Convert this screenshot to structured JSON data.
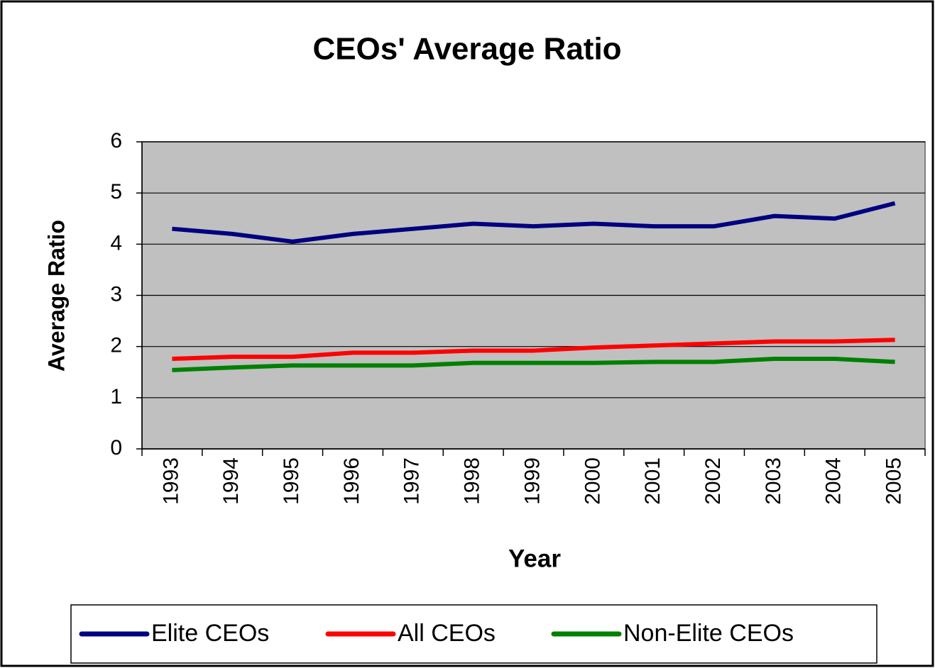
{
  "chart_data": {
    "type": "line",
    "title": "CEOs' Average Ratio",
    "x_label": "Year",
    "y_label": "Average Ratio",
    "categories": [
      "1993",
      "1994",
      "1995",
      "1996",
      "1997",
      "1998",
      "1999",
      "2000",
      "2001",
      "2002",
      "2003",
      "2004",
      "2005"
    ],
    "series": [
      {
        "name": "Elite CEOs",
        "color": "#000080",
        "values": [
          4.3,
          4.2,
          4.05,
          4.2,
          4.3,
          4.4,
          4.35,
          4.4,
          4.35,
          4.35,
          4.55,
          4.5,
          4.8
        ]
      },
      {
        "name": "All CEOs",
        "color": "#ff0000",
        "values": [
          1.76,
          1.8,
          1.8,
          1.88,
          1.88,
          1.92,
          1.92,
          1.98,
          2.02,
          2.06,
          2.1,
          2.1,
          2.13
        ]
      },
      {
        "name": "Non-Elite CEOs",
        "color": "#008000",
        "values": [
          1.54,
          1.59,
          1.63,
          1.63,
          1.63,
          1.68,
          1.68,
          1.68,
          1.7,
          1.7,
          1.76,
          1.76,
          1.7
        ]
      }
    ],
    "ylim": [
      0,
      6
    ],
    "yticks": [
      0,
      1,
      2,
      3,
      4,
      5,
      6
    ],
    "grid": true,
    "legend": "bottom",
    "plot_background": "#c0c0c0"
  }
}
